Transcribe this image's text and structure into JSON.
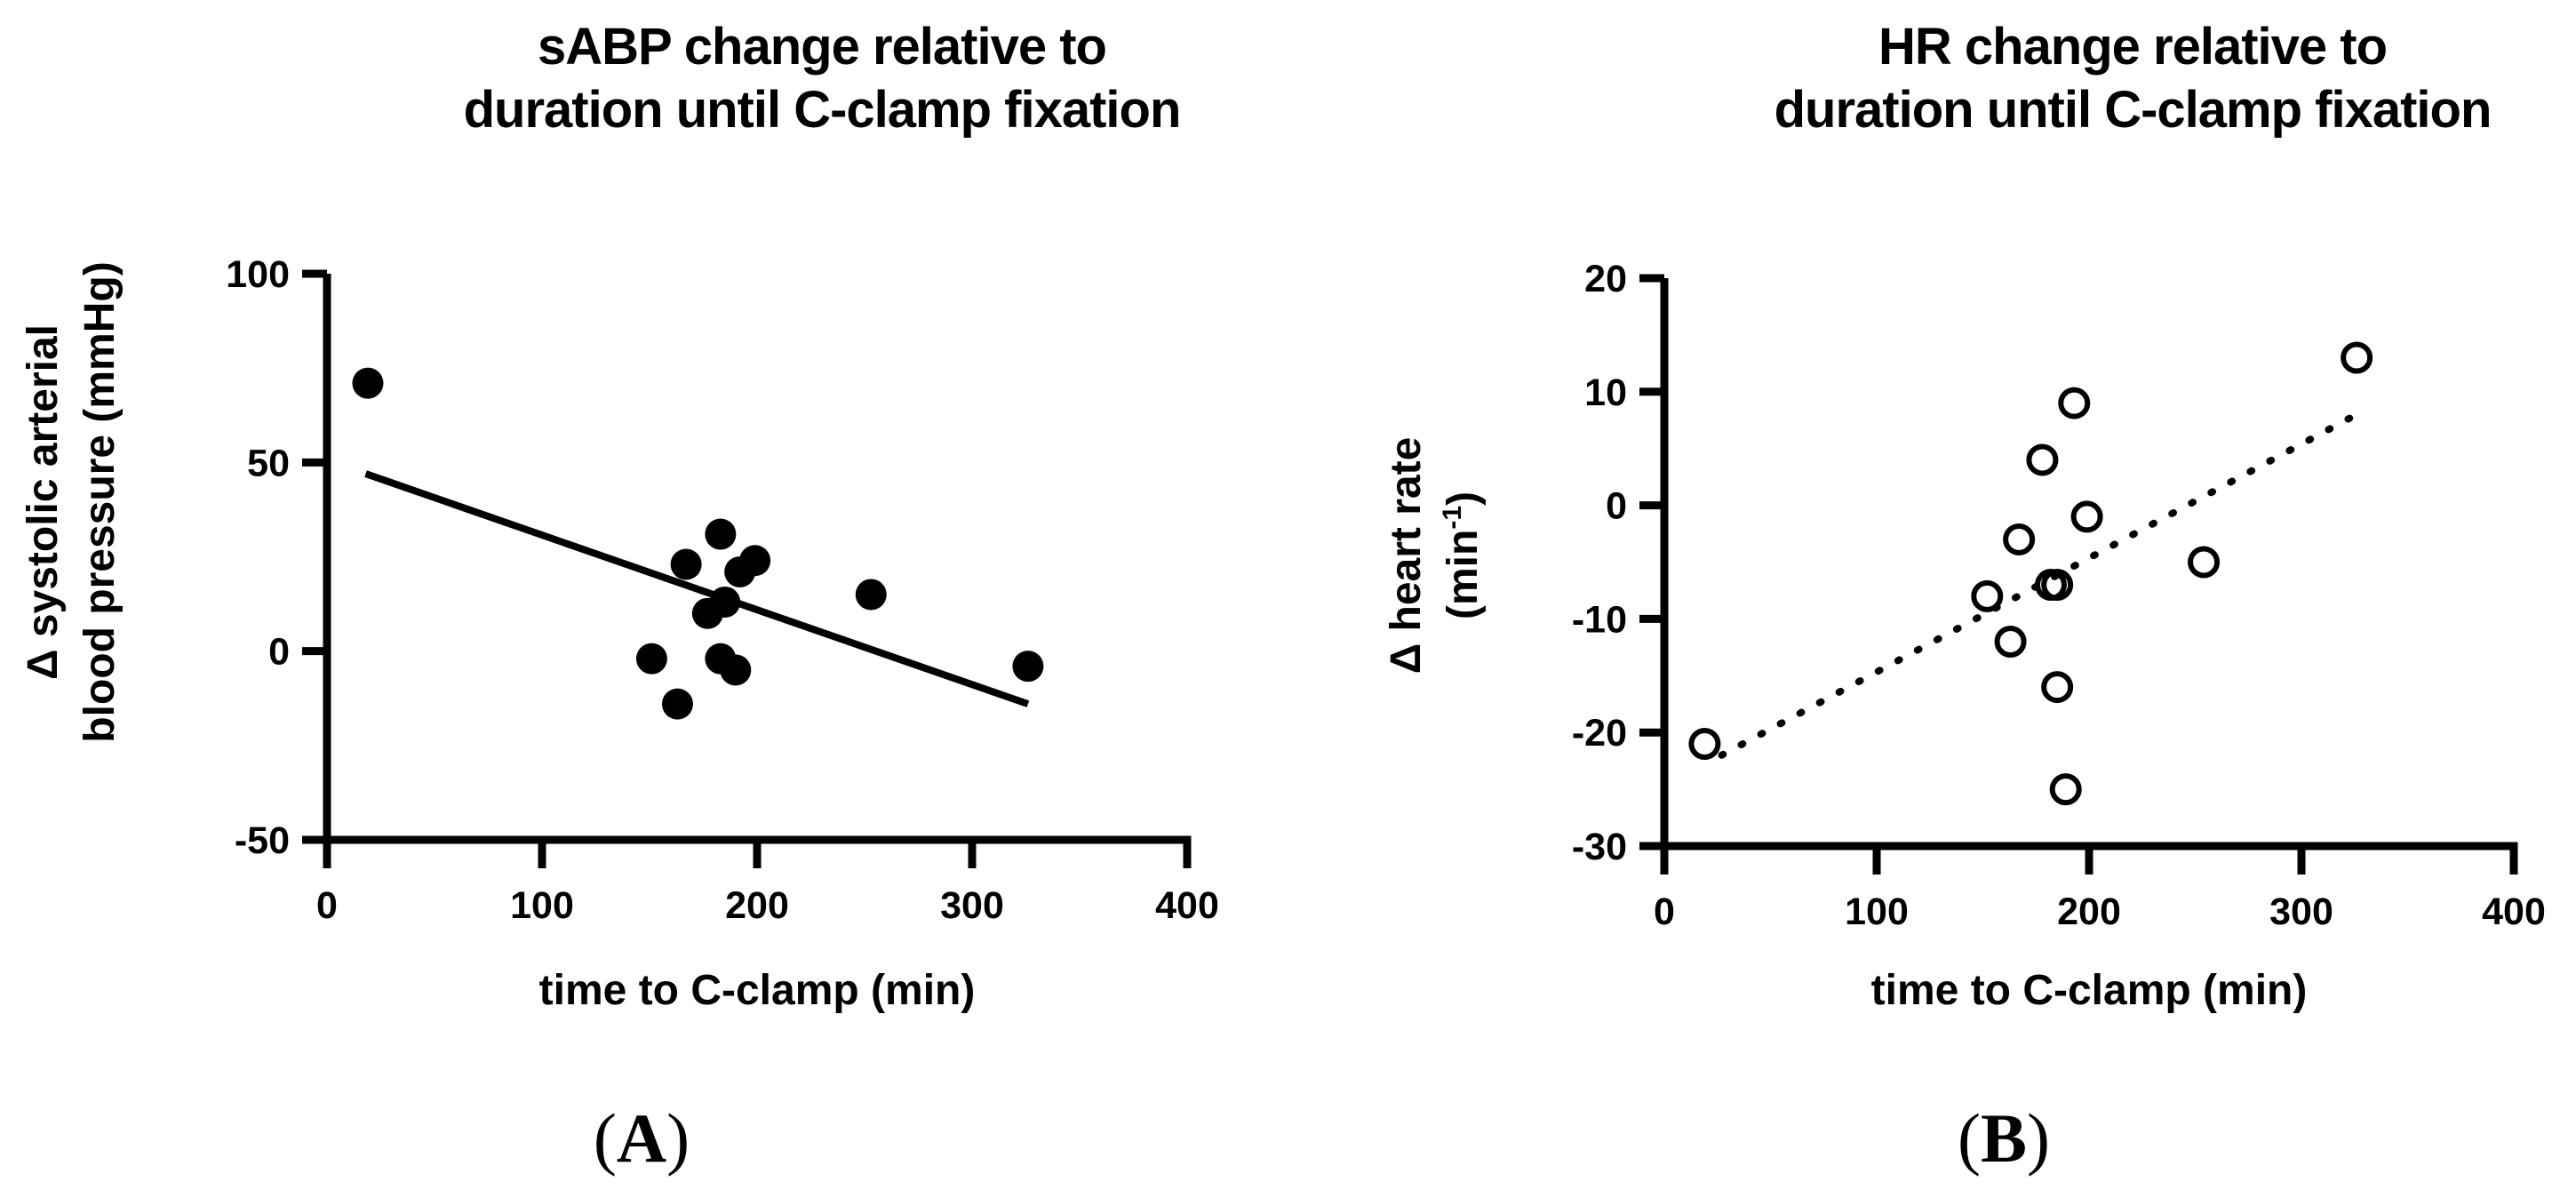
{
  "figure": {
    "background": "#FFFFFF",
    "ink_color": "#000000",
    "panel_labels": [
      {
        "panel": "a",
        "open": "(",
        "letter": "A",
        "close": ")"
      },
      {
        "panel": "b",
        "open": "(",
        "letter": "B",
        "close": ")"
      }
    ]
  },
  "chart_data": [
    {
      "type": "scatter",
      "panel": "a",
      "title_lines": [
        "sABP change relative to",
        "duration until C-clamp fixation"
      ],
      "xlabel": "time to C-clamp (min)",
      "ylabel_lines": [
        [
          {
            "t": "Δ systolic arterial"
          }
        ],
        [
          {
            "t": "blood pressure (mmHg)"
          }
        ]
      ],
      "xlim": [
        0,
        400
      ],
      "ylim": [
        -50,
        100
      ],
      "xticks": [
        0,
        100,
        200,
        300,
        400
      ],
      "yticks": [
        100,
        50,
        0,
        -50
      ],
      "grid": false,
      "legend": "none",
      "marker": "filled",
      "points": [
        [
          19,
          71
        ],
        [
          151,
          -2
        ],
        [
          163,
          -14
        ],
        [
          167,
          23
        ],
        [
          177,
          10
        ],
        [
          183,
          31
        ],
        [
          183,
          -2
        ],
        [
          185,
          13
        ],
        [
          190,
          -5
        ],
        [
          192,
          21
        ],
        [
          199,
          24
        ],
        [
          253,
          15
        ],
        [
          326,
          -4
        ]
      ],
      "trendline": {
        "style": "solid",
        "x1": 18,
        "y1": 47,
        "x2": 326,
        "y2": -14
      }
    },
    {
      "type": "scatter",
      "panel": "b",
      "title_lines": [
        "HR change relative to",
        "duration until C-clamp fixation"
      ],
      "xlabel": "time to C-clamp (min)",
      "ylabel_lines": [
        [
          {
            "t": "Δ heart rate"
          }
        ],
        [
          {
            "t": "(min"
          },
          {
            "t": "-1",
            "sup": true
          },
          {
            "t": ")"
          }
        ]
      ],
      "xlim": [
        0,
        400
      ],
      "ylim": [
        -30,
        20
      ],
      "xticks": [
        0,
        100,
        200,
        300,
        400
      ],
      "yticks": [
        20,
        10,
        0,
        -10,
        -20,
        -30
      ],
      "grid": false,
      "legend": "none",
      "marker": "open",
      "points": [
        [
          19,
          -21
        ],
        [
          152,
          -8
        ],
        [
          163,
          -12
        ],
        [
          167,
          -3
        ],
        [
          178,
          4
        ],
        [
          182,
          -7
        ],
        [
          185,
          -7
        ],
        [
          185,
          -16
        ],
        [
          189,
          -25
        ],
        [
          193,
          9
        ],
        [
          199,
          -1
        ],
        [
          254,
          -5
        ],
        [
          326,
          13
        ]
      ],
      "trendline": {
        "style": "dotted",
        "x1": 27,
        "y1": -22,
        "x2": 326,
        "y2": 8
      }
    }
  ]
}
